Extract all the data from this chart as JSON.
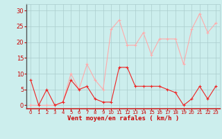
{
  "x": [
    0,
    1,
    2,
    3,
    4,
    5,
    6,
    7,
    8,
    9,
    10,
    11,
    12,
    13,
    14,
    15,
    16,
    17,
    18,
    19,
    20,
    21,
    22,
    23
  ],
  "wind_avg": [
    8,
    0,
    5,
    0,
    1,
    8,
    5,
    6,
    2,
    1,
    1,
    12,
    12,
    6,
    6,
    6,
    6,
    5,
    4,
    0,
    2,
    6,
    2,
    6
  ],
  "wind_gust": [
    0,
    0,
    0,
    0,
    1,
    10,
    5,
    13,
    8,
    5,
    24,
    27,
    19,
    19,
    23,
    16,
    21,
    21,
    21,
    13,
    24,
    29,
    23,
    26
  ],
  "avg_color": "#ee2222",
  "gust_color": "#ffaaaa",
  "bg_color": "#cceeed",
  "grid_color": "#aacccc",
  "xlabel": "Vent moyen/en rafales ( km/h )",
  "ylabel_ticks": [
    0,
    5,
    10,
    15,
    20,
    25,
    30
  ],
  "ylim": [
    -1,
    32
  ],
  "xlim": [
    -0.5,
    23.5
  ],
  "xlabel_color": "#cc0000",
  "tick_color": "#cc0000",
  "left_spine_color": "#555555",
  "bottom_spine_color": "#cc0000"
}
